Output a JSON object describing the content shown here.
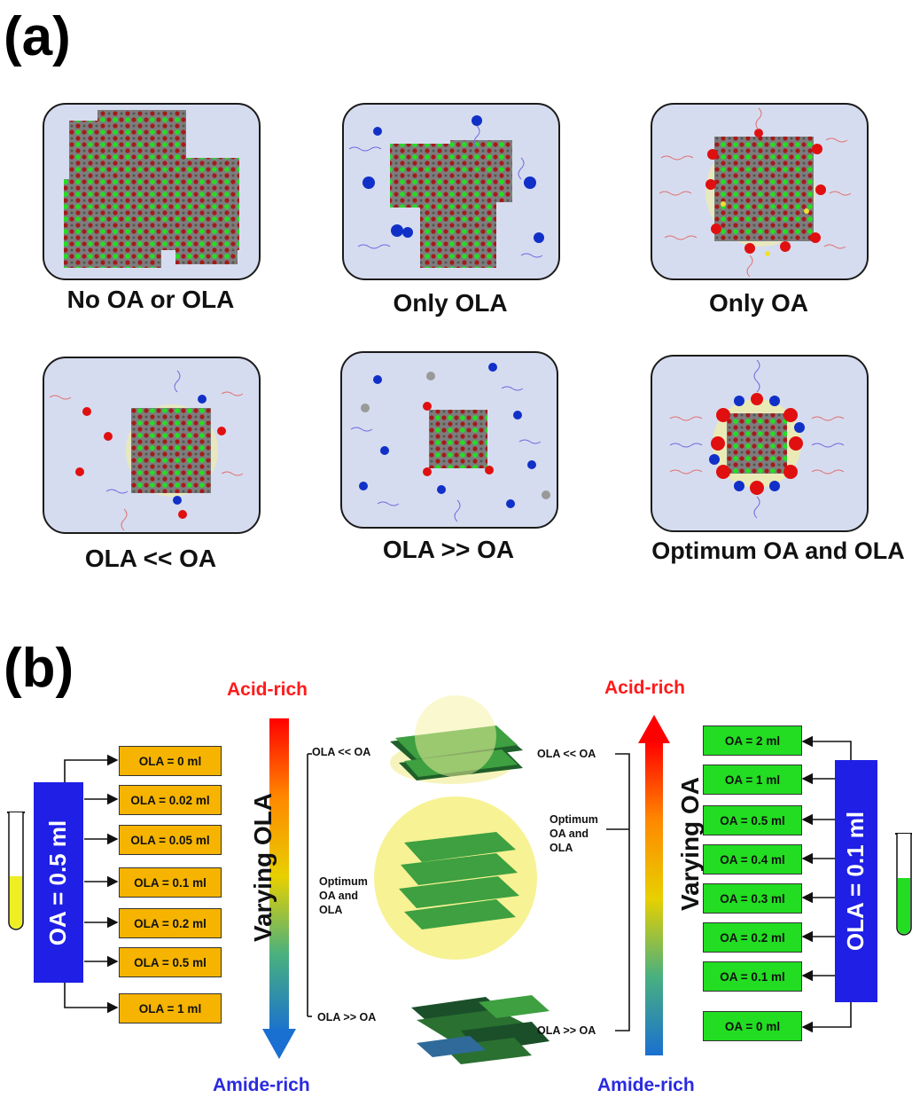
{
  "panel_a": {
    "label": "(a)",
    "captions": [
      "No OA or OLA",
      "Only OLA",
      "Only OA",
      "OLA << OA",
      "OLA >> OA",
      "Optimum OA and OLA"
    ]
  },
  "panel_b": {
    "label": "(b)",
    "left_group": {
      "bar_label": "OA = 0.5 ml",
      "boxes": [
        "OLA = 0 ml",
        "OLA = 0.02 ml",
        "OLA = 0.05 ml",
        "OLA = 0.1 ml",
        "OLA = 0.2 ml",
        "OLA = 0.5 ml",
        "OLA = 1 ml"
      ]
    },
    "right_group": {
      "bar_label": "OLA = 0.1 ml",
      "boxes": [
        "OA = 2 ml",
        "OA = 1 ml",
        "OA = 0.5 ml",
        "OA = 0.4 ml",
        "OA = 0.3 ml",
        "OA = 0.2 ml",
        "OA = 0.1 ml",
        "OA = 0 ml"
      ]
    },
    "left_axis": {
      "top": "Acid-rich",
      "bottom": "Amide-rich",
      "title": "Varying OLA"
    },
    "right_axis": {
      "top": "Acid-rich",
      "bottom": "Amide-rich",
      "title": "Varying OA"
    },
    "left_marks": {
      "top": "OLA << OA",
      "mid_lines": [
        "Optimum",
        "OA and",
        "OLA"
      ],
      "bottom": "OLA >> OA"
    },
    "right_marks": {
      "top": "OLA << OA",
      "mid_lines": [
        "Optimum",
        "OA and",
        "OLA"
      ],
      "bottom": "OLA >> OA"
    },
    "colors": {
      "acid": "#ff1a1a",
      "amide": "#2a2ae0",
      "orange_box": "#f6b400",
      "green_box": "#22dd22",
      "bar": "#1f1fe6"
    }
  }
}
